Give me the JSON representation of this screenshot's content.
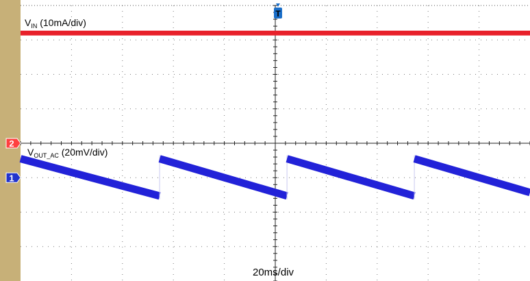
{
  "chart_data": {
    "type": "line",
    "time_scale_label": "20ms/div",
    "trigger_marker": "T",
    "grid_divisions": {
      "x": 10,
      "y": 8
    },
    "x_range_div": [
      0,
      10
    ],
    "series": [
      {
        "name_main": "V",
        "name_sub": "IN",
        "scale": "(10mA/div)",
        "channel": "2",
        "color": "#e8202a",
        "level_div": 7.2
      },
      {
        "name_main": "V",
        "name_sub": "OUT_AC",
        "scale": "(20mV/div)",
        "channel": "1",
        "color": "#2222d8",
        "segments": [
          {
            "x": [
              0.0,
              2.73
            ],
            "y": [
              3.55,
              2.47
            ]
          },
          {
            "x": [
              2.73,
              5.23
            ],
            "y": [
              3.55,
              2.47
            ]
          },
          {
            "x": [
              5.23,
              7.73
            ],
            "y": [
              3.55,
              2.47
            ]
          },
          {
            "x": [
              7.73,
              10.0
            ],
            "y": [
              3.55,
              2.57
            ]
          }
        ]
      }
    ],
    "channel_markers": [
      {
        "label": "2",
        "color": "#ff4040",
        "level_div": 4.0
      },
      {
        "label": "1",
        "color": "#2233cc",
        "level_div": 3.0
      }
    ]
  }
}
